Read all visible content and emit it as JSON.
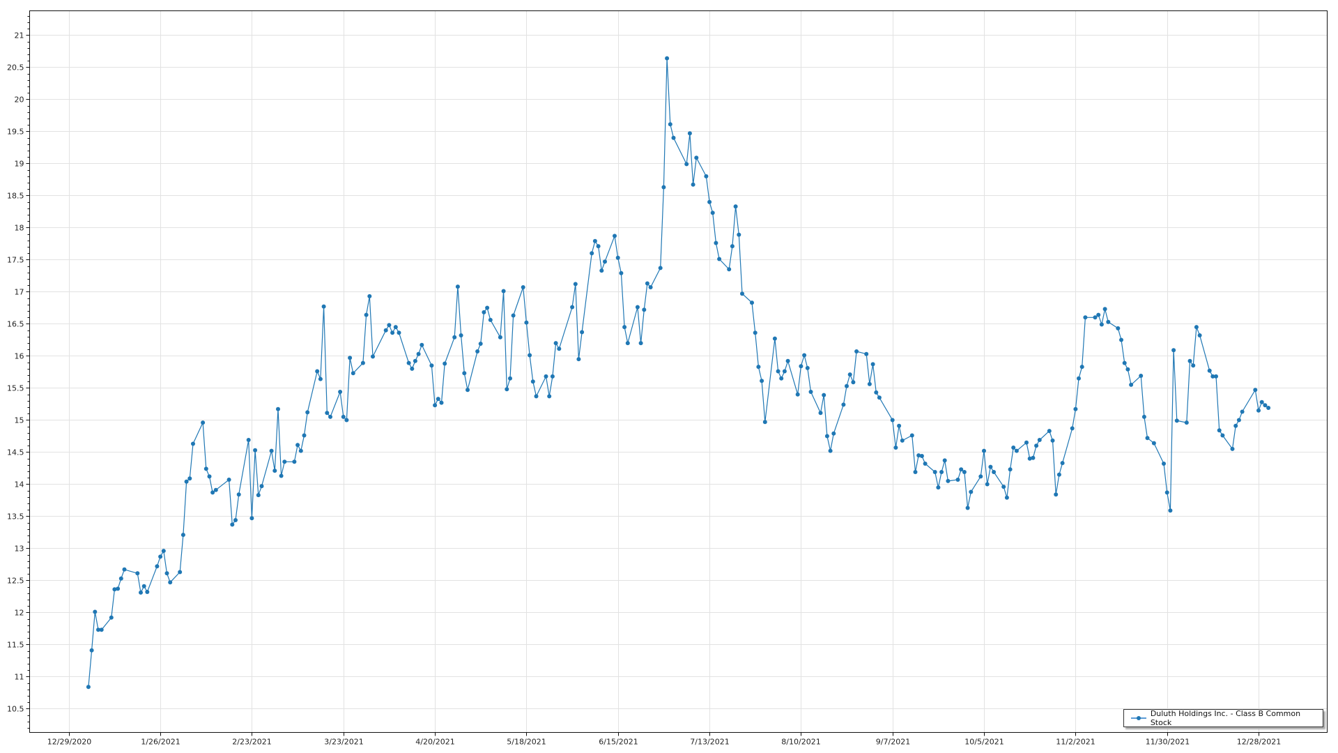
{
  "chart_data": {
    "type": "line",
    "title": "",
    "xlabel": "",
    "ylabel": "",
    "x_axis": {
      "type": "date",
      "range": [
        "2020-12-17",
        "2022-01-18"
      ],
      "tick_start": "2020-12-29",
      "tick_interval_days": 28,
      "tick_labels": [
        "12/29/2020",
        "1/26/2021",
        "2/23/2021",
        "3/23/2021",
        "4/20/2021",
        "5/18/2021",
        "6/15/2021",
        "7/13/2021",
        "8/10/2021",
        "9/7/2021",
        "10/5/2021",
        "11/2/2021",
        "11/30/2021",
        "12/28/2021"
      ]
    },
    "y_axis": {
      "range": [
        10.13,
        21.38
      ],
      "major_step": 0.5,
      "minor_step": 0.1,
      "tick_labels": [
        "10.5",
        "11",
        "11.5",
        "12",
        "12.5",
        "13",
        "13.5",
        "14",
        "14.5",
        "15",
        "15.5",
        "16",
        "16.5",
        "17",
        "17.5",
        "18",
        "18.5",
        "19",
        "19.5",
        "20",
        "20.5",
        "21"
      ]
    },
    "grid": true,
    "legend_placement": "bottom-right",
    "series": [
      {
        "name": "Duluth Holdings Inc. - Class B Common Stock",
        "color": "#1f77b4",
        "marker": "circle",
        "points": [
          [
            "2021-01-04",
            10.84
          ],
          [
            "2021-01-05",
            11.41
          ],
          [
            "2021-01-06",
            12.01
          ],
          [
            "2021-01-07",
            11.73
          ],
          [
            "2021-01-08",
            11.73
          ],
          [
            "2021-01-11",
            11.92
          ],
          [
            "2021-01-12",
            12.36
          ],
          [
            "2021-01-13",
            12.37
          ],
          [
            "2021-01-14",
            12.53
          ],
          [
            "2021-01-15",
            12.67
          ],
          [
            "2021-01-19",
            12.61
          ],
          [
            "2021-01-20",
            12.31
          ],
          [
            "2021-01-21",
            12.41
          ],
          [
            "2021-01-22",
            12.32
          ],
          [
            "2021-01-25",
            12.72
          ],
          [
            "2021-01-26",
            12.87
          ],
          [
            "2021-01-27",
            12.96
          ],
          [
            "2021-01-28",
            12.61
          ],
          [
            "2021-01-29",
            12.47
          ],
          [
            "2021-02-01",
            12.63
          ],
          [
            "2021-02-02",
            13.21
          ],
          [
            "2021-02-03",
            14.04
          ],
          [
            "2021-02-04",
            14.09
          ],
          [
            "2021-02-05",
            14.63
          ],
          [
            "2021-02-08",
            14.96
          ],
          [
            "2021-02-09",
            14.24
          ],
          [
            "2021-02-10",
            14.12
          ],
          [
            "2021-02-11",
            13.87
          ],
          [
            "2021-02-12",
            13.91
          ],
          [
            "2021-02-16",
            14.07
          ],
          [
            "2021-02-17",
            13.37
          ],
          [
            "2021-02-18",
            13.44
          ],
          [
            "2021-02-19",
            13.84
          ],
          [
            "2021-02-22",
            14.69
          ],
          [
            "2021-02-23",
            13.47
          ],
          [
            "2021-02-24",
            14.53
          ],
          [
            "2021-02-25",
            13.83
          ],
          [
            "2021-02-26",
            13.97
          ],
          [
            "2021-03-01",
            14.52
          ],
          [
            "2021-03-02",
            14.21
          ],
          [
            "2021-03-03",
            15.17
          ],
          [
            "2021-03-04",
            14.13
          ],
          [
            "2021-03-05",
            14.35
          ],
          [
            "2021-03-08",
            14.35
          ],
          [
            "2021-03-09",
            14.61
          ],
          [
            "2021-03-10",
            14.52
          ],
          [
            "2021-03-11",
            14.76
          ],
          [
            "2021-03-12",
            15.12
          ],
          [
            "2021-03-15",
            15.76
          ],
          [
            "2021-03-16",
            15.64
          ],
          [
            "2021-03-17",
            16.77
          ],
          [
            "2021-03-18",
            15.11
          ],
          [
            "2021-03-19",
            15.05
          ],
          [
            "2021-03-22",
            15.44
          ],
          [
            "2021-03-23",
            15.05
          ],
          [
            "2021-03-24",
            15.0
          ],
          [
            "2021-03-25",
            15.97
          ],
          [
            "2021-03-26",
            15.73
          ],
          [
            "2021-03-29",
            15.89
          ],
          [
            "2021-03-30",
            16.64
          ],
          [
            "2021-03-31",
            16.93
          ],
          [
            "2021-04-01",
            15.99
          ],
          [
            "2021-04-05",
            16.4
          ],
          [
            "2021-04-06",
            16.48
          ],
          [
            "2021-04-07",
            16.36
          ],
          [
            "2021-04-08",
            16.45
          ],
          [
            "2021-04-09",
            16.36
          ],
          [
            "2021-04-12",
            15.89
          ],
          [
            "2021-04-13",
            15.8
          ],
          [
            "2021-04-14",
            15.92
          ],
          [
            "2021-04-15",
            16.03
          ],
          [
            "2021-04-16",
            16.17
          ],
          [
            "2021-04-19",
            15.85
          ],
          [
            "2021-04-20",
            15.23
          ],
          [
            "2021-04-21",
            15.33
          ],
          [
            "2021-04-22",
            15.27
          ],
          [
            "2021-04-23",
            15.88
          ],
          [
            "2021-04-26",
            16.29
          ],
          [
            "2021-04-27",
            17.08
          ],
          [
            "2021-04-28",
            16.32
          ],
          [
            "2021-04-29",
            15.73
          ],
          [
            "2021-04-30",
            15.47
          ],
          [
            "2021-05-03",
            16.07
          ],
          [
            "2021-05-04",
            16.19
          ],
          [
            "2021-05-05",
            16.68
          ],
          [
            "2021-05-06",
            16.75
          ],
          [
            "2021-05-07",
            16.56
          ],
          [
            "2021-05-10",
            16.29
          ],
          [
            "2021-05-11",
            17.01
          ],
          [
            "2021-05-12",
            15.48
          ],
          [
            "2021-05-13",
            15.65
          ],
          [
            "2021-05-14",
            16.63
          ],
          [
            "2021-05-17",
            17.07
          ],
          [
            "2021-05-18",
            16.52
          ],
          [
            "2021-05-19",
            16.01
          ],
          [
            "2021-05-20",
            15.6
          ],
          [
            "2021-05-21",
            15.37
          ],
          [
            "2021-05-24",
            15.68
          ],
          [
            "2021-05-25",
            15.37
          ],
          [
            "2021-05-26",
            15.68
          ],
          [
            "2021-05-27",
            16.2
          ],
          [
            "2021-05-28",
            16.11
          ],
          [
            "2021-06-01",
            16.76
          ],
          [
            "2021-06-02",
            17.12
          ],
          [
            "2021-06-03",
            15.95
          ],
          [
            "2021-06-04",
            16.37
          ],
          [
            "2021-06-07",
            17.6
          ],
          [
            "2021-06-08",
            17.79
          ],
          [
            "2021-06-09",
            17.71
          ],
          [
            "2021-06-10",
            17.33
          ],
          [
            "2021-06-11",
            17.47
          ],
          [
            "2021-06-14",
            17.87
          ],
          [
            "2021-06-15",
            17.53
          ],
          [
            "2021-06-16",
            17.29
          ],
          [
            "2021-06-17",
            16.45
          ],
          [
            "2021-06-18",
            16.2
          ],
          [
            "2021-06-21",
            16.76
          ],
          [
            "2021-06-22",
            16.2
          ],
          [
            "2021-06-23",
            16.72
          ],
          [
            "2021-06-24",
            17.13
          ],
          [
            "2021-06-25",
            17.07
          ],
          [
            "2021-06-28",
            17.37
          ],
          [
            "2021-06-29",
            18.63
          ],
          [
            "2021-06-30",
            20.64
          ],
          [
            "2021-07-01",
            19.61
          ],
          [
            "2021-07-02",
            19.4
          ],
          [
            "2021-07-06",
            18.99
          ],
          [
            "2021-07-07",
            19.47
          ],
          [
            "2021-07-08",
            18.67
          ],
          [
            "2021-07-09",
            19.09
          ],
          [
            "2021-07-12",
            18.8
          ],
          [
            "2021-07-13",
            18.4
          ],
          [
            "2021-07-14",
            18.23
          ],
          [
            "2021-07-15",
            17.76
          ],
          [
            "2021-07-16",
            17.51
          ],
          [
            "2021-07-19",
            17.35
          ],
          [
            "2021-07-20",
            17.71
          ],
          [
            "2021-07-21",
            18.33
          ],
          [
            "2021-07-22",
            17.89
          ],
          [
            "2021-07-23",
            16.97
          ],
          [
            "2021-07-26",
            16.83
          ],
          [
            "2021-07-27",
            16.36
          ],
          [
            "2021-07-28",
            15.83
          ],
          [
            "2021-07-29",
            15.61
          ],
          [
            "2021-07-30",
            14.97
          ],
          [
            "2021-08-02",
            16.27
          ],
          [
            "2021-08-03",
            15.76
          ],
          [
            "2021-08-04",
            15.65
          ],
          [
            "2021-08-05",
            15.76
          ],
          [
            "2021-08-06",
            15.92
          ],
          [
            "2021-08-09",
            15.4
          ],
          [
            "2021-08-10",
            15.84
          ],
          [
            "2021-08-11",
            16.01
          ],
          [
            "2021-08-12",
            15.81
          ],
          [
            "2021-08-13",
            15.44
          ],
          [
            "2021-08-16",
            15.11
          ],
          [
            "2021-08-17",
            15.39
          ],
          [
            "2021-08-18",
            14.75
          ],
          [
            "2021-08-19",
            14.52
          ],
          [
            "2021-08-20",
            14.79
          ],
          [
            "2021-08-23",
            15.24
          ],
          [
            "2021-08-24",
            15.53
          ],
          [
            "2021-08-25",
            15.71
          ],
          [
            "2021-08-26",
            15.59
          ],
          [
            "2021-08-27",
            16.07
          ],
          [
            "2021-08-30",
            16.03
          ],
          [
            "2021-08-31",
            15.56
          ],
          [
            "2021-09-01",
            15.87
          ],
          [
            "2021-09-02",
            15.43
          ],
          [
            "2021-09-03",
            15.35
          ],
          [
            "2021-09-07",
            15.0
          ],
          [
            "2021-09-08",
            14.57
          ],
          [
            "2021-09-09",
            14.91
          ],
          [
            "2021-09-10",
            14.68
          ],
          [
            "2021-09-13",
            14.76
          ],
          [
            "2021-09-14",
            14.19
          ],
          [
            "2021-09-15",
            14.45
          ],
          [
            "2021-09-16",
            14.44
          ],
          [
            "2021-09-17",
            14.32
          ],
          [
            "2021-09-20",
            14.19
          ],
          [
            "2021-09-21",
            13.95
          ],
          [
            "2021-09-22",
            14.19
          ],
          [
            "2021-09-23",
            14.37
          ],
          [
            "2021-09-24",
            14.05
          ],
          [
            "2021-09-27",
            14.07
          ],
          [
            "2021-09-28",
            14.23
          ],
          [
            "2021-09-29",
            14.19
          ],
          [
            "2021-09-30",
            13.63
          ],
          [
            "2021-10-01",
            13.88
          ],
          [
            "2021-10-04",
            14.12
          ],
          [
            "2021-10-05",
            14.52
          ],
          [
            "2021-10-06",
            14.0
          ],
          [
            "2021-10-07",
            14.27
          ],
          [
            "2021-10-08",
            14.19
          ],
          [
            "2021-10-11",
            13.96
          ],
          [
            "2021-10-12",
            13.79
          ],
          [
            "2021-10-13",
            14.23
          ],
          [
            "2021-10-14",
            14.57
          ],
          [
            "2021-10-15",
            14.52
          ],
          [
            "2021-10-18",
            14.65
          ],
          [
            "2021-10-19",
            14.4
          ],
          [
            "2021-10-20",
            14.41
          ],
          [
            "2021-10-21",
            14.6
          ],
          [
            "2021-10-22",
            14.69
          ],
          [
            "2021-10-25",
            14.83
          ],
          [
            "2021-10-26",
            14.68
          ],
          [
            "2021-10-27",
            13.84
          ],
          [
            "2021-10-28",
            14.15
          ],
          [
            "2021-10-29",
            14.33
          ],
          [
            "2021-11-01",
            14.87
          ],
          [
            "2021-11-02",
            15.17
          ],
          [
            "2021-11-03",
            15.65
          ],
          [
            "2021-11-04",
            15.83
          ],
          [
            "2021-11-05",
            16.6
          ],
          [
            "2021-11-08",
            16.6
          ],
          [
            "2021-11-09",
            16.64
          ],
          [
            "2021-11-10",
            16.49
          ],
          [
            "2021-11-11",
            16.73
          ],
          [
            "2021-11-12",
            16.53
          ],
          [
            "2021-11-15",
            16.43
          ],
          [
            "2021-11-16",
            16.25
          ],
          [
            "2021-11-17",
            15.89
          ],
          [
            "2021-11-18",
            15.79
          ],
          [
            "2021-11-19",
            15.55
          ],
          [
            "2021-11-22",
            15.69
          ],
          [
            "2021-11-23",
            15.05
          ],
          [
            "2021-11-24",
            14.72
          ],
          [
            "2021-11-26",
            14.64
          ],
          [
            "2021-11-29",
            14.32
          ],
          [
            "2021-11-30",
            13.87
          ],
          [
            "2021-12-01",
            13.59
          ],
          [
            "2021-12-02",
            16.09
          ],
          [
            "2021-12-03",
            14.99
          ],
          [
            "2021-12-06",
            14.96
          ],
          [
            "2021-12-07",
            15.92
          ],
          [
            "2021-12-08",
            15.85
          ],
          [
            "2021-12-09",
            16.45
          ],
          [
            "2021-12-10",
            16.32
          ],
          [
            "2021-12-13",
            15.77
          ],
          [
            "2021-12-14",
            15.68
          ],
          [
            "2021-12-15",
            15.68
          ],
          [
            "2021-12-16",
            14.84
          ],
          [
            "2021-12-17",
            14.76
          ],
          [
            "2021-12-20",
            14.55
          ],
          [
            "2021-12-21",
            14.91
          ],
          [
            "2021-12-22",
            15.0
          ],
          [
            "2021-12-23",
            15.13
          ],
          [
            "2021-12-27",
            15.47
          ],
          [
            "2021-12-28",
            15.15
          ],
          [
            "2021-12-29",
            15.28
          ],
          [
            "2021-12-30",
            15.23
          ],
          [
            "2021-12-31",
            15.19
          ]
        ]
      }
    ]
  },
  "legend": {
    "label": "Duluth Holdings Inc. - Class B Common Stock"
  }
}
